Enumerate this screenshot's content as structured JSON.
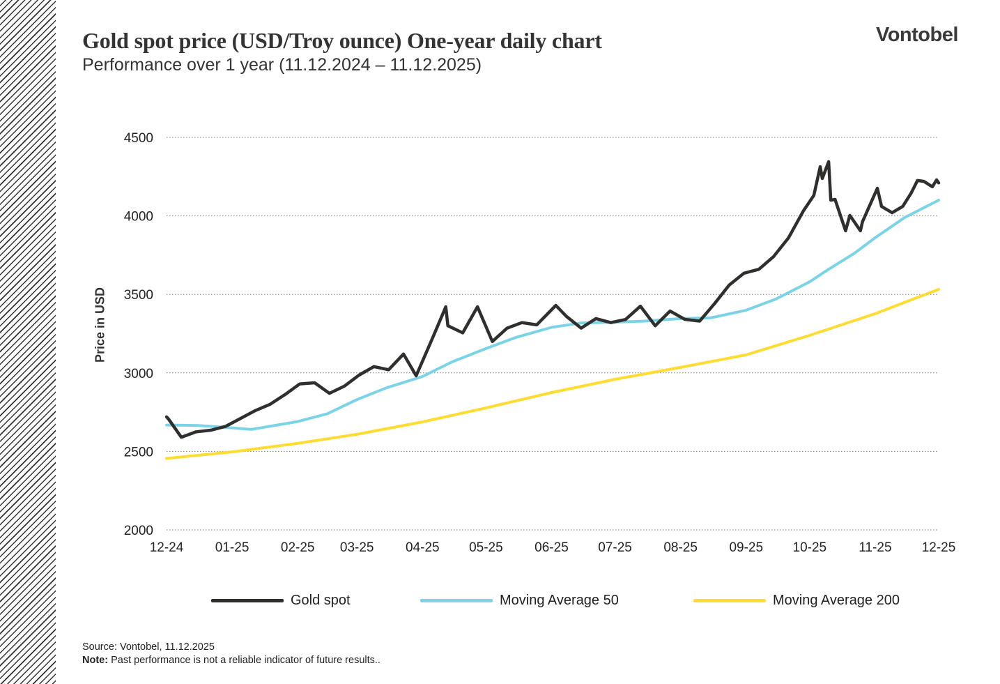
{
  "header": {
    "title": "Gold spot price (USD/Troy ounce) One-year daily chart",
    "subtitle": "Performance over 1 year (11.12.2024 – 11.12.2025)",
    "logo": "Vontobel"
  },
  "footer": {
    "source": "Source: Vontobel, 11.12.2025",
    "note_label": "Note:",
    "note_text": " Past performance is not a reliable indicator of future results.."
  },
  "chart_data": {
    "type": "line",
    "title": "Gold spot price (USD/Troy ounce) One-year daily chart",
    "xlabel": "",
    "ylabel": "Price in USD",
    "xlim": [
      "2024-12-11",
      "2025-12-11"
    ],
    "ylim": [
      2000,
      4500
    ],
    "yticks": [
      2000,
      2500,
      3000,
      3500,
      4000,
      4500
    ],
    "xticks": [
      {
        "date": "2024-12-11",
        "label": "12-24"
      },
      {
        "date": "2025-01-11",
        "label": "01-25"
      },
      {
        "date": "2025-02-11",
        "label": "02-25"
      },
      {
        "date": "2025-03-11",
        "label": "03-25"
      },
      {
        "date": "2025-04-11",
        "label": "04-25"
      },
      {
        "date": "2025-05-11",
        "label": "05-25"
      },
      {
        "date": "2025-06-11",
        "label": "06-25"
      },
      {
        "date": "2025-07-11",
        "label": "07-25"
      },
      {
        "date": "2025-08-11",
        "label": "08-25"
      },
      {
        "date": "2025-09-11",
        "label": "09-25"
      },
      {
        "date": "2025-10-11",
        "label": "10-25"
      },
      {
        "date": "2025-11-11",
        "label": "11-25"
      },
      {
        "date": "2025-12-11",
        "label": "12-25"
      }
    ],
    "grid": "horizontal dotted",
    "legend": "bottom",
    "series": [
      {
        "name": "Gold spot",
        "color": "#2f302e",
        "points": [
          [
            "2024-12-11",
            2720
          ],
          [
            "2024-12-12",
            2705
          ],
          [
            "2024-12-18",
            2590
          ],
          [
            "2024-12-25",
            2625
          ],
          [
            "2025-01-01",
            2635
          ],
          [
            "2025-01-08",
            2660
          ],
          [
            "2025-01-15",
            2710
          ],
          [
            "2025-01-22",
            2760
          ],
          [
            "2025-01-29",
            2800
          ],
          [
            "2025-02-05",
            2862
          ],
          [
            "2025-02-12",
            2930
          ],
          [
            "2025-02-19",
            2937
          ],
          [
            "2025-02-26",
            2870
          ],
          [
            "2025-03-05",
            2915
          ],
          [
            "2025-03-12",
            2986
          ],
          [
            "2025-03-19",
            3040
          ],
          [
            "2025-03-26",
            3020
          ],
          [
            "2025-04-02",
            3120
          ],
          [
            "2025-04-08",
            2982
          ],
          [
            "2025-04-16",
            3230
          ],
          [
            "2025-04-22",
            3421
          ],
          [
            "2025-04-23",
            3300
          ],
          [
            "2025-04-30",
            3255
          ],
          [
            "2025-05-07",
            3421
          ],
          [
            "2025-05-14",
            3200
          ],
          [
            "2025-05-21",
            3285
          ],
          [
            "2025-05-28",
            3320
          ],
          [
            "2025-06-04",
            3306
          ],
          [
            "2025-06-13",
            3430
          ],
          [
            "2025-06-18",
            3360
          ],
          [
            "2025-06-25",
            3285
          ],
          [
            "2025-07-02",
            3346
          ],
          [
            "2025-07-09",
            3320
          ],
          [
            "2025-07-16",
            3340
          ],
          [
            "2025-07-23",
            3425
          ],
          [
            "2025-07-30",
            3300
          ],
          [
            "2025-08-06",
            3394
          ],
          [
            "2025-08-13",
            3341
          ],
          [
            "2025-08-20",
            3330
          ],
          [
            "2025-08-27",
            3440
          ],
          [
            "2025-09-03",
            3560
          ],
          [
            "2025-09-10",
            3635
          ],
          [
            "2025-09-17",
            3660
          ],
          [
            "2025-09-24",
            3741
          ],
          [
            "2025-10-01",
            3860
          ],
          [
            "2025-10-08",
            4030
          ],
          [
            "2025-10-13",
            4131
          ],
          [
            "2025-10-16",
            4313
          ],
          [
            "2025-10-17",
            4238
          ],
          [
            "2025-10-20",
            4345
          ],
          [
            "2025-10-21",
            4100
          ],
          [
            "2025-10-23",
            4105
          ],
          [
            "2025-10-28",
            3905
          ],
          [
            "2025-10-30",
            4003
          ],
          [
            "2025-11-04",
            3905
          ],
          [
            "2025-11-05",
            3963
          ],
          [
            "2025-11-12",
            4176
          ],
          [
            "2025-11-14",
            4060
          ],
          [
            "2025-11-19",
            4020
          ],
          [
            "2025-11-24",
            4060
          ],
          [
            "2025-11-28",
            4145
          ],
          [
            "2025-12-01",
            4225
          ],
          [
            "2025-12-04",
            4220
          ],
          [
            "2025-12-08",
            4185
          ],
          [
            "2025-12-10",
            4229
          ],
          [
            "2025-12-11",
            4210
          ]
        ]
      },
      {
        "name": "Moving Average 50",
        "color": "#7dd3e6",
        "points": [
          [
            "2024-12-11",
            2668
          ],
          [
            "2024-12-26",
            2665
          ],
          [
            "2025-01-11",
            2650
          ],
          [
            "2025-01-20",
            2640
          ],
          [
            "2025-02-11",
            2690
          ],
          [
            "2025-02-25",
            2740
          ],
          [
            "2025-03-11",
            2830
          ],
          [
            "2025-03-25",
            2905
          ],
          [
            "2025-04-11",
            2977
          ],
          [
            "2025-04-25",
            3070
          ],
          [
            "2025-05-11",
            3155
          ],
          [
            "2025-05-25",
            3225
          ],
          [
            "2025-06-11",
            3290
          ],
          [
            "2025-06-25",
            3318
          ],
          [
            "2025-07-11",
            3323
          ],
          [
            "2025-07-25",
            3330
          ],
          [
            "2025-08-11",
            3346
          ],
          [
            "2025-08-25",
            3350
          ],
          [
            "2025-09-11",
            3399
          ],
          [
            "2025-09-25",
            3470
          ],
          [
            "2025-10-11",
            3580
          ],
          [
            "2025-10-20",
            3660
          ],
          [
            "2025-11-01",
            3760
          ],
          [
            "2025-11-11",
            3861
          ],
          [
            "2025-11-25",
            3990
          ],
          [
            "2025-12-11",
            4100
          ]
        ]
      },
      {
        "name": "Moving Average 200",
        "color": "#fedc33",
        "points": [
          [
            "2024-12-11",
            2455
          ],
          [
            "2025-01-11",
            2497
          ],
          [
            "2025-02-11",
            2551
          ],
          [
            "2025-03-11",
            2609
          ],
          [
            "2025-04-11",
            2688
          ],
          [
            "2025-05-11",
            2777
          ],
          [
            "2025-06-11",
            2875
          ],
          [
            "2025-07-11",
            2959
          ],
          [
            "2025-08-11",
            3035
          ],
          [
            "2025-09-11",
            3115
          ],
          [
            "2025-10-11",
            3239
          ],
          [
            "2025-11-11",
            3377
          ],
          [
            "2025-12-11",
            3532
          ]
        ]
      }
    ]
  }
}
